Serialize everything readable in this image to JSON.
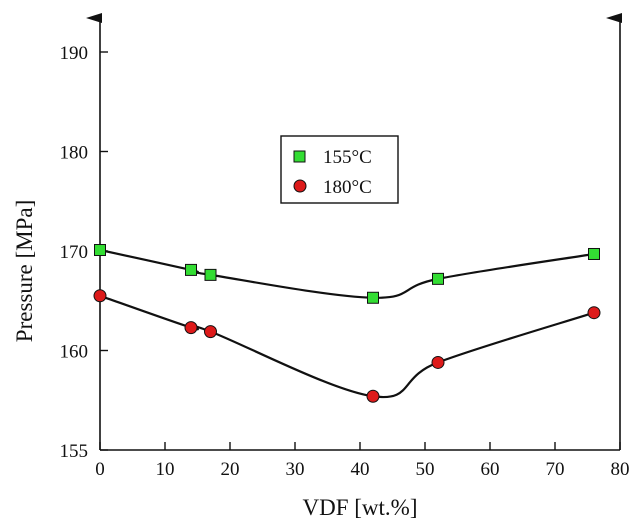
{
  "chart_data": {
    "type": "scatter",
    "xlabel": "VDF [wt.%]",
    "ylabel": "Pressure [MPa]",
    "xlim": [
      0,
      80
    ],
    "ylim": [
      150,
      190
    ],
    "x_ticks": [
      0,
      10,
      20,
      30,
      40,
      50,
      60,
      70,
      80
    ],
    "y_ticks": [
      155,
      160,
      170,
      180,
      190
    ],
    "y_scale_note": "axis break: lowest tick labeled 155 placed one interval below 160",
    "grid": false,
    "legend_position": "center-left",
    "series": [
      {
        "name": "155°C",
        "marker": "square",
        "color": "#33dd33",
        "x": [
          0,
          14,
          17,
          42,
          52,
          76
        ],
        "y": [
          170.1,
          168.1,
          167.6,
          165.3,
          167.2,
          169.7
        ]
      },
      {
        "name": "180°C",
        "marker": "circle",
        "color": "#dd1a1a",
        "x": [
          0,
          14,
          17,
          42,
          52,
          76
        ],
        "y": [
          165.5,
          162.3,
          161.9,
          157.7,
          159.4,
          163.8
        ]
      }
    ]
  }
}
